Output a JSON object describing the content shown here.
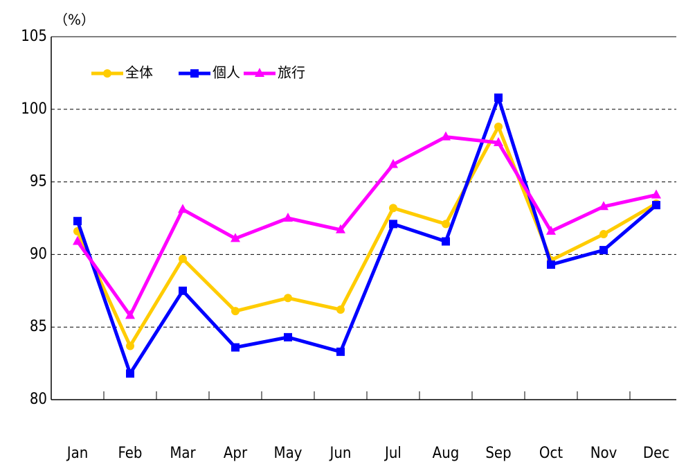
{
  "chart_data": {
    "type": "line",
    "unit_label": "（%）",
    "categories": [
      "Jan",
      "Feb",
      "Mar",
      "Apr",
      "May",
      "Jun",
      "Jul",
      "Aug",
      "Sep",
      "Oct",
      "Nov",
      "Dec"
    ],
    "series": [
      {
        "name": "全体",
        "color": "#ffcc00",
        "marker": "circle",
        "values": [
          91.6,
          83.7,
          89.7,
          86.1,
          87.0,
          86.2,
          93.2,
          92.1,
          98.8,
          89.6,
          91.4,
          93.5
        ]
      },
      {
        "name": "個人",
        "color": "#0000ff",
        "marker": "square",
        "values": [
          92.3,
          81.8,
          87.5,
          83.6,
          84.3,
          83.3,
          92.1,
          90.9,
          100.8,
          89.3,
          90.3,
          93.4
        ]
      },
      {
        "name": "旅行",
        "color": "#ff00ff",
        "marker": "triangle",
        "values": [
          90.9,
          85.8,
          93.1,
          91.1,
          92.5,
          91.7,
          96.2,
          98.1,
          97.7,
          91.6,
          93.3,
          94.1
        ]
      }
    ],
    "ylim": [
      80,
      105
    ],
    "yticks": [
      80,
      85,
      90,
      95,
      100,
      105
    ],
    "grid": true,
    "legend": "upper left"
  }
}
